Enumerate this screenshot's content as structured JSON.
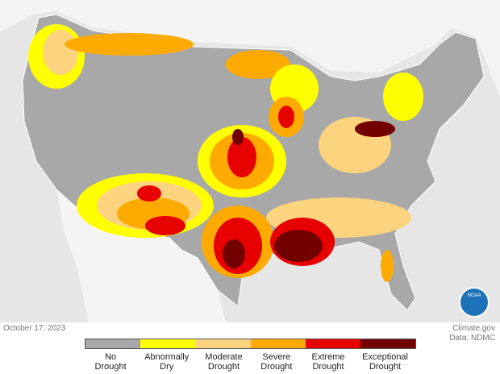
{
  "date": "October 17, 2023",
  "credit": "Climate.gov",
  "source": "Data: NDMC",
  "logo": "NOAA",
  "legend": [
    {
      "label": "No Drought",
      "color": "#a8a8a8"
    },
    {
      "label": "Abnormally Dry",
      "color": "#ffff00"
    },
    {
      "label": "Moderate Drought",
      "color": "#fcd37f"
    },
    {
      "label": "Severe Drought",
      "color": "#ffaa00"
    },
    {
      "label": "Extreme Drought",
      "color": "#e60000"
    },
    {
      "label": "Exceptional Drought",
      "color": "#730000"
    }
  ]
}
